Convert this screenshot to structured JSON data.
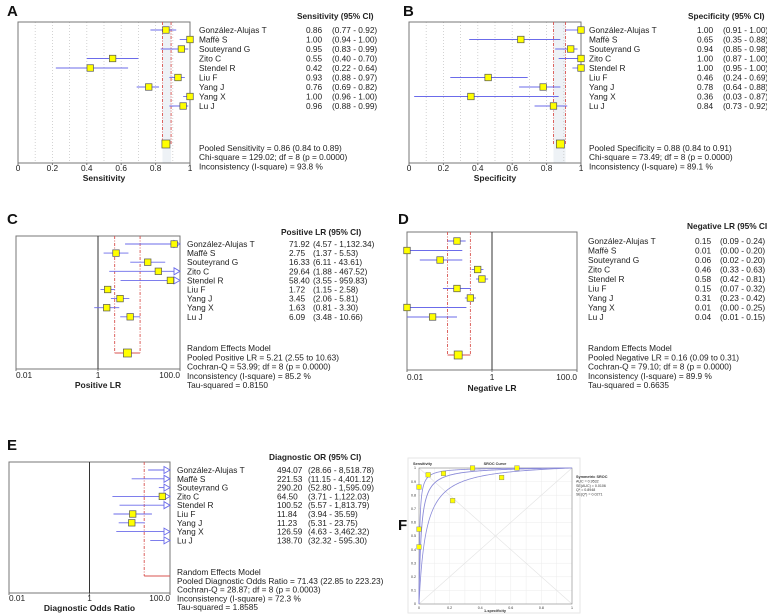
{
  "panel_labels": [
    "A",
    "B",
    "C",
    "D",
    "E",
    "F"
  ],
  "chart_data": [
    {
      "type": "forest",
      "panel": "A",
      "title": "Sensitivity (95% CI)",
      "xlabel": "Sensitivity",
      "scale": "linear",
      "xlim": [
        0,
        1
      ],
      "grid": true,
      "xticks": [
        {
          "v": 0,
          "label": "0"
        },
        {
          "v": 0.2,
          "label": "0.2"
        },
        {
          "v": 0.4,
          "label": "0.4"
        },
        {
          "v": 0.6,
          "label": "0.6"
        },
        {
          "v": 0.8,
          "label": "0.8"
        },
        {
          "v": 1,
          "label": "1"
        }
      ],
      "studies": [
        {
          "name": "González-Alujas T",
          "est": 0.86,
          "lo": 0.77,
          "hi": 0.92,
          "est_label": "0.86",
          "ci_label": "(0.77 - 0.92)"
        },
        {
          "name": "Maffè S",
          "est": 1.0,
          "lo": 0.94,
          "hi": 1.0,
          "est_label": "1.00",
          "ci_label": "(0.94 - 1.00)"
        },
        {
          "name": "Souteyrand G",
          "est": 0.95,
          "lo": 0.83,
          "hi": 0.99,
          "est_label": "0.95",
          "ci_label": "(0.83 - 0.99)"
        },
        {
          "name": "Zito C",
          "est": 0.55,
          "lo": 0.4,
          "hi": 0.7,
          "est_label": "0.55",
          "ci_label": "(0.40 - 0.70)"
        },
        {
          "name": "Stendel R",
          "est": 0.42,
          "lo": 0.22,
          "hi": 0.64,
          "est_label": "0.42",
          "ci_label": "(0.22 - 0.64)"
        },
        {
          "name": "Liu F",
          "est": 0.93,
          "lo": 0.88,
          "hi": 0.97,
          "est_label": "0.93",
          "ci_label": "(0.88 - 0.97)"
        },
        {
          "name": "Yang J",
          "est": 0.76,
          "lo": 0.69,
          "hi": 0.82,
          "est_label": "0.76",
          "ci_label": "(0.69 - 0.82)"
        },
        {
          "name": "Yang X",
          "est": 1.0,
          "lo": 0.96,
          "hi": 1.0,
          "est_label": "1.00",
          "ci_label": "(0.96 - 1.00)"
        },
        {
          "name": "Lu J",
          "est": 0.96,
          "lo": 0.88,
          "hi": 0.99,
          "est_label": "0.96",
          "ci_label": "(0.88 - 0.99)"
        }
      ],
      "pooled": {
        "est": 0.86,
        "lo": 0.84,
        "hi": 0.89,
        "marker": true
      },
      "summary": [
        "Pooled Sensitivity = 0.86 (0.84 to 0.89)",
        "Chi-square = 129.02; df =  8 (p = 0.0000)",
        "Inconsistency (I-square) = 93.8 %"
      ]
    },
    {
      "type": "forest",
      "panel": "B",
      "title": "Specificity (95% CI)",
      "xlabel": "Specificity",
      "scale": "linear",
      "xlim": [
        0,
        1
      ],
      "grid": true,
      "xticks": [
        {
          "v": 0,
          "label": "0"
        },
        {
          "v": 0.2,
          "label": "0.2"
        },
        {
          "v": 0.4,
          "label": "0.4"
        },
        {
          "v": 0.6,
          "label": "0.6"
        },
        {
          "v": 0.8,
          "label": "0.8"
        },
        {
          "v": 1,
          "label": "1"
        }
      ],
      "studies": [
        {
          "name": "González-Alujas T",
          "est": 1.0,
          "lo": 0.91,
          "hi": 1.0,
          "est_label": "1.00",
          "ci_label": "(0.91 - 1.00)"
        },
        {
          "name": "Maffè S",
          "est": 0.65,
          "lo": 0.35,
          "hi": 0.88,
          "est_label": "0.65",
          "ci_label": "(0.35 - 0.88)"
        },
        {
          "name": "Souteyrand G",
          "est": 0.94,
          "lo": 0.85,
          "hi": 0.98,
          "est_label": "0.94",
          "ci_label": "(0.85 - 0.98)"
        },
        {
          "name": "Zito C",
          "est": 1.0,
          "lo": 0.87,
          "hi": 1.0,
          "est_label": "1.00",
          "ci_label": "(0.87 - 1.00)"
        },
        {
          "name": "Stendel R",
          "est": 1.0,
          "lo": 0.95,
          "hi": 1.0,
          "est_label": "1.00",
          "ci_label": "(0.95 - 1.00)"
        },
        {
          "name": "Liu F",
          "est": 0.46,
          "lo": 0.24,
          "hi": 0.69,
          "est_label": "0.46",
          "ci_label": "(0.24 - 0.69)"
        },
        {
          "name": "Yang J",
          "est": 0.78,
          "lo": 0.64,
          "hi": 0.88,
          "est_label": "0.78",
          "ci_label": "(0.64 - 0.88)"
        },
        {
          "name": "Yang X",
          "est": 0.36,
          "lo": 0.03,
          "hi": 0.87,
          "est_label": "0.36",
          "ci_label": "(0.03 - 0.87)"
        },
        {
          "name": "Lu J",
          "est": 0.84,
          "lo": 0.73,
          "hi": 0.92,
          "est_label": "0.84",
          "ci_label": "(0.73 - 0.92)"
        }
      ],
      "pooled": {
        "est": 0.88,
        "lo": 0.84,
        "hi": 0.91,
        "marker": true
      },
      "summary": [
        "Pooled Specificity = 0.88 (0.84 to 0.91)",
        "Chi-square = 73.49; df =  8 (p = 0.0000)",
        "Inconsistency (I-square) = 89.1 %"
      ]
    },
    {
      "type": "forest",
      "panel": "C",
      "title": "Positive LR (95% CI)",
      "xlabel": "Positive LR",
      "scale": "log",
      "xlim": [
        0.01,
        100
      ],
      "grid": false,
      "xticks": [
        {
          "v": 0.01,
          "label": "0.01"
        },
        {
          "v": 1,
          "label": "1"
        },
        {
          "v": 100,
          "label": "100.0"
        }
      ],
      "studies": [
        {
          "name": "González-Alujas T",
          "est": 71.92,
          "lo": 4.57,
          "hi": 1132.34,
          "est_label": "71.92",
          "ci_label": "(4.57 - 1,132.34)"
        },
        {
          "name": "Maffè S",
          "est": 2.75,
          "lo": 1.37,
          "hi": 5.53,
          "est_label": "2.75",
          "ci_label": "(1.37 - 5.53)"
        },
        {
          "name": "Souteyrand G",
          "est": 16.33,
          "lo": 6.11,
          "hi": 43.61,
          "est_label": "16.33",
          "ci_label": "(6.11 - 43.61)"
        },
        {
          "name": "Zito C",
          "est": 29.64,
          "lo": 1.88,
          "hi": 467.52,
          "est_label": "29.64",
          "ci_label": "(1.88 - 467.52)"
        },
        {
          "name": "Stendel R",
          "est": 58.4,
          "lo": 3.55,
          "hi": 959.83,
          "est_label": "58.40",
          "ci_label": "(3.55 - 959.83)"
        },
        {
          "name": "Liu F",
          "est": 1.72,
          "lo": 1.15,
          "hi": 2.58,
          "est_label": "1.72",
          "ci_label": "(1.15 - 2.58)"
        },
        {
          "name": "Yang J",
          "est": 3.45,
          "lo": 2.06,
          "hi": 5.81,
          "est_label": "3.45",
          "ci_label": "(2.06 - 5.81)"
        },
        {
          "name": "Yang X",
          "est": 1.63,
          "lo": 0.81,
          "hi": 3.3,
          "est_label": "1.63",
          "ci_label": "(0.81 - 3.30)"
        },
        {
          "name": "Lu J",
          "est": 6.09,
          "lo": 3.48,
          "hi": 10.66,
          "est_label": "6.09",
          "ci_label": "(3.48 - 10.66)"
        }
      ],
      "pooled": {
        "est": 5.21,
        "lo": 2.55,
        "hi": 10.63,
        "marker": true
      },
      "summary": [
        "Random Effects Model",
        "Pooled Positive LR = 5.21 (2.55 to 10.63)",
        "Cochran-Q = 53.99; df =  8 (p = 0.0000)",
        "Inconsistency (I-square) = 85.2 %",
        "Tau-squared = 0.8150"
      ]
    },
    {
      "type": "forest",
      "panel": "D",
      "title": "Negative LR (95% CI)",
      "xlabel": "Negative LR",
      "scale": "log",
      "xlim": [
        0.01,
        100
      ],
      "grid": false,
      "xticks": [
        {
          "v": 0.01,
          "label": "0.01"
        },
        {
          "v": 1,
          "label": "1"
        },
        {
          "v": 100,
          "label": "100.0"
        }
      ],
      "studies": [
        {
          "name": "González-Alujas T",
          "est": 0.15,
          "lo": 0.09,
          "hi": 0.24,
          "est_label": "0.15",
          "ci_label": "(0.09 - 0.24)"
        },
        {
          "name": "Maffè S",
          "est": 0.01,
          "lo": 0.0,
          "hi": 0.2,
          "est_label": "0.01",
          "ci_label": "(0.00 - 0.20)"
        },
        {
          "name": "Souteyrand G",
          "est": 0.06,
          "lo": 0.02,
          "hi": 0.2,
          "est_label": "0.06",
          "ci_label": "(0.02 - 0.20)"
        },
        {
          "name": "Zito C",
          "est": 0.46,
          "lo": 0.33,
          "hi": 0.63,
          "est_label": "0.46",
          "ci_label": "(0.33 - 0.63)"
        },
        {
          "name": "Stendel R",
          "est": 0.58,
          "lo": 0.42,
          "hi": 0.81,
          "est_label": "0.58",
          "ci_label": "(0.42 - 0.81)"
        },
        {
          "name": "Liu F",
          "est": 0.15,
          "lo": 0.07,
          "hi": 0.32,
          "est_label": "0.15",
          "ci_label": "(0.07 - 0.32)"
        },
        {
          "name": "Yang J",
          "est": 0.31,
          "lo": 0.23,
          "hi": 0.42,
          "est_label": "0.31",
          "ci_label": "(0.23 - 0.42)"
        },
        {
          "name": "Yang X",
          "est": 0.01,
          "lo": 0.0,
          "hi": 0.25,
          "est_label": "0.01",
          "ci_label": "(0.00 - 0.25)"
        },
        {
          "name": "Lu J",
          "est": 0.04,
          "lo": 0.01,
          "hi": 0.15,
          "est_label": "0.04",
          "ci_label": "(0.01 - 0.15)"
        }
      ],
      "pooled": {
        "est": 0.16,
        "lo": 0.09,
        "hi": 0.31,
        "marker": true
      },
      "summary": [
        "Random Effects Model",
        "Pooled Negative LR = 0.16 (0.09 to 0.31)",
        "Cochran-Q = 79.10; df =  8 (p = 0.0000)",
        "Inconsistency (I-square) = 89.9 %",
        "Tau-squared = 0.6635"
      ]
    },
    {
      "type": "forest",
      "panel": "E",
      "title": "Diagnostic OR (95% CI)",
      "xlabel": "Diagnostic Odds Ratio",
      "scale": "log",
      "xlim": [
        0.01,
        100
      ],
      "grid": false,
      "xticks": [
        {
          "v": 0.01,
          "label": "0.01"
        },
        {
          "v": 1,
          "label": "1"
        },
        {
          "v": 100,
          "label": "100.0"
        }
      ],
      "studies": [
        {
          "name": "González-Alujas T",
          "est": 494.07,
          "lo": 28.66,
          "hi": 8518.78,
          "est_label": "494.07",
          "ci_label": "(28.66 - 8,518.78)"
        },
        {
          "name": "Maffè S",
          "est": 221.53,
          "lo": 11.15,
          "hi": 4401.12,
          "est_label": "221.53",
          "ci_label": "(11.15 - 4,401.12)"
        },
        {
          "name": "Souteyrand G",
          "est": 290.2,
          "lo": 52.8,
          "hi": 1595.09,
          "est_label": "290.20",
          "ci_label": "(52.80 - 1,595.09)"
        },
        {
          "name": "Zito C",
          "est": 64.5,
          "lo": 3.71,
          "hi": 1122.03,
          "est_label": "64.50",
          "ci_label": "(3.71 - 1,122.03)"
        },
        {
          "name": "Stendel R",
          "est": 100.52,
          "lo": 5.57,
          "hi": 1813.79,
          "est_label": "100.52",
          "ci_label": "(5.57 - 1,813.79)"
        },
        {
          "name": "Liu F",
          "est": 11.84,
          "lo": 3.94,
          "hi": 35.59,
          "est_label": "11.84",
          "ci_label": "(3.94 - 35.59)"
        },
        {
          "name": "Yang J",
          "est": 11.23,
          "lo": 5.31,
          "hi": 23.75,
          "est_label": "11.23",
          "ci_label": "(5.31 - 23.75)"
        },
        {
          "name": "Yang X",
          "est": 126.59,
          "lo": 4.63,
          "hi": 3462.32,
          "est_label": "126.59",
          "ci_label": "(4.63 - 3,462.32)"
        },
        {
          "name": "Lu J",
          "est": 138.7,
          "lo": 32.32,
          "hi": 595.3,
          "est_label": "138.70",
          "ci_label": "(32.32 - 595.30)"
        }
      ],
      "pooled": {
        "est": 71.43,
        "lo": 22.85,
        "hi": 223.23,
        "marker": false
      },
      "summary": [
        "Random Effects Model",
        "Pooled Diagnostic Odds Ratio = 71.43 (22.85 to 223.23)",
        "Cochran-Q = 28.87; df =  8 (p = 0.0003)",
        "Inconsistency (I-square) = 72.3 %",
        "Tau-squared = 1.8585"
      ]
    },
    {
      "type": "sroc",
      "panel": "F",
      "title": "SROC Curve",
      "ylabel": "Sensitivity",
      "xlabel": "1-specificity",
      "xlim": [
        0,
        1
      ],
      "ylim": [
        0,
        1
      ],
      "xticks": [
        "0",
        "0.2",
        "0.4",
        "0.6",
        "0.8",
        "1"
      ],
      "yticks": [
        "0",
        "0.1",
        "0.2",
        "0.3",
        "0.4",
        "0.5",
        "0.6",
        "0.7",
        "0.8",
        "0.9",
        "1"
      ],
      "points": [
        {
          "fpr": 0.0,
          "sens": 0.86
        },
        {
          "fpr": 0.35,
          "sens": 1.0
        },
        {
          "fpr": 0.06,
          "sens": 0.95
        },
        {
          "fpr": 0.0,
          "sens": 0.55
        },
        {
          "fpr": 0.0,
          "sens": 0.42
        },
        {
          "fpr": 0.54,
          "sens": 0.93
        },
        {
          "fpr": 0.22,
          "sens": 0.76
        },
        {
          "fpr": 0.64,
          "sens": 1.0
        },
        {
          "fpr": 0.16,
          "sens": 0.96
        }
      ],
      "legend": [
        "Symmetric SROC",
        "AUC = 0.9532",
        "SE(AUC) = 0.0106",
        "Q* = 0.8948",
        "SE(Q*) = 0.0271"
      ]
    }
  ]
}
